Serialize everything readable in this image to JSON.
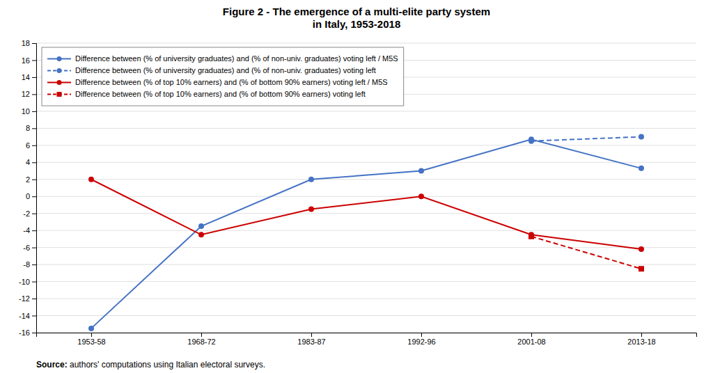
{
  "chart_data": {
    "type": "line",
    "title": "Figure 2 - The emergence of a multi-elite party system\nin Italy, 1953-2018",
    "categories": [
      "1953-58",
      "1968-72",
      "1983-87",
      "1992-96",
      "2001-08",
      "2013-18"
    ],
    "series": [
      {
        "name": "Difference between (% of university graduates) and (% of non-univ. graduates) voting left / M5S",
        "color": "#4472C4",
        "marker": "circle",
        "line_style": "solid",
        "values": [
          -15.5,
          -3.5,
          2.0,
          3.0,
          6.7,
          3.3
        ]
      },
      {
        "name": "Difference between (% of university graduates) and (% of non-univ. graduates) voting left",
        "color": "#4472C4",
        "marker": "circle",
        "line_style": "dashed",
        "values": [
          null,
          null,
          null,
          null,
          6.5,
          7.0
        ]
      },
      {
        "name": "Difference between (% of top 10% earners) and (% of bottom 90% earners) voting left / M5S",
        "color": "#CC0000",
        "marker": "circle",
        "line_style": "solid",
        "values": [
          2.0,
          -4.5,
          -1.5,
          0.0,
          -4.5,
          -6.2
        ]
      },
      {
        "name": "Difference between (% of top 10% earners) and (% of bottom 90% earners) voting left",
        "color": "#CC0000",
        "marker": "square",
        "line_style": "dashed",
        "values": [
          null,
          null,
          null,
          null,
          -4.7,
          -8.5
        ]
      }
    ],
    "ylim": [
      -16,
      18
    ],
    "yticks": [
      -16,
      -14,
      -12,
      -10,
      -8,
      -6,
      -4,
      -2,
      0,
      2,
      4,
      6,
      8,
      10,
      12,
      14,
      16,
      18
    ],
    "grid": true,
    "legend": "upper left",
    "annotations": [
      "Source:",
      " authors' computations using Italian electoral surveys."
    ]
  }
}
